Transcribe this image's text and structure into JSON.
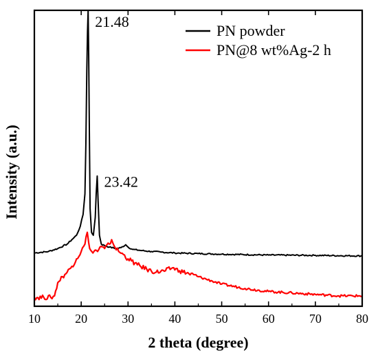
{
  "chart_data": {
    "type": "line",
    "xlabel": "2 theta (degree)",
    "ylabel": "Intensity (a.u.)",
    "xlim": [
      10,
      80
    ],
    "ylim": [
      0,
      100
    ],
    "x_ticks": [
      10,
      20,
      30,
      40,
      50,
      60,
      70,
      80
    ],
    "yticks_shown": false,
    "grid": false,
    "legend_position": "top-right",
    "annotations": [
      {
        "text": "21.48",
        "x": 21.48,
        "y": 96
      },
      {
        "text": "23.42",
        "x": 23.42,
        "y": 42
      }
    ],
    "series": [
      {
        "name": "PN powder",
        "color": "#000000",
        "x": [
          10,
          13,
          15,
          17,
          18,
          19,
          19.8,
          20.4,
          20.8,
          21.0,
          21.2,
          21.35,
          21.48,
          21.6,
          21.75,
          21.9,
          22.2,
          22.6,
          23.0,
          23.2,
          23.42,
          23.6,
          23.9,
          24.3,
          25,
          26,
          27.5,
          28.5,
          29.5,
          30,
          31,
          33,
          35,
          37,
          40,
          45,
          50,
          60,
          70,
          80
        ],
        "y": [
          18,
          18.5,
          19.5,
          21,
          22.5,
          24,
          27,
          31,
          38,
          55,
          80,
          93,
          100,
          85,
          58,
          33,
          25,
          24,
          30,
          38,
          44,
          36,
          24,
          21,
          20.5,
          20,
          19.5,
          19.8,
          20.8,
          20,
          19.2,
          18.8,
          18.5,
          18.3,
          18,
          17.8,
          17.6,
          17.3,
          17.2,
          17
        ]
      },
      {
        "name": "PN@8 wt%Ag-2 h",
        "color": "#ff0000",
        "x": [
          10,
          12,
          13.5,
          14.3,
          15,
          16,
          17,
          18,
          19,
          20,
          20.8,
          21.3,
          21.6,
          22,
          22.5,
          23,
          23.5,
          24,
          25,
          26,
          26.5,
          27,
          28,
          29,
          30,
          32,
          34,
          36,
          38,
          39.5,
          41,
          43,
          45,
          48,
          50,
          55,
          60,
          65,
          70,
          75,
          80
        ],
        "y": [
          3,
          3,
          3,
          3.5,
          8,
          10,
          11.5,
          13.5,
          16,
          18.5,
          21,
          25,
          21.5,
          19,
          18,
          19,
          18.5,
          20,
          19.5,
          21,
          22.5,
          20.5,
          18.5,
          17.5,
          16,
          14,
          12.5,
          11.5,
          12,
          13,
          12,
          11,
          10,
          8.5,
          7.5,
          6,
          5,
          4.5,
          4,
          3.5,
          3.5
        ]
      }
    ]
  }
}
